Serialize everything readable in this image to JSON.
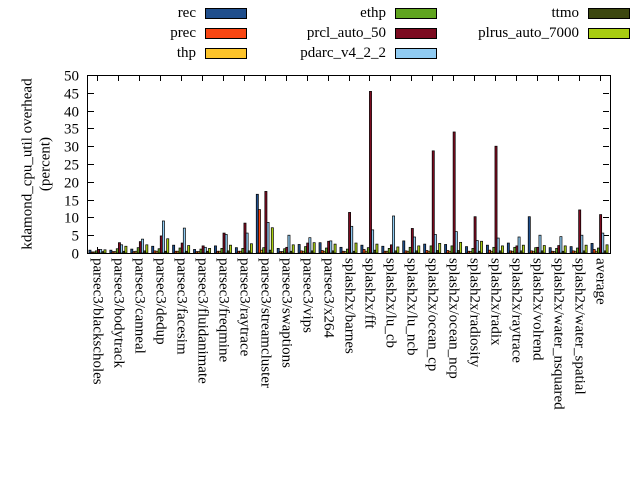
{
  "legend": {
    "columns": [
      {
        "items": [
          {
            "label": "rec"
          },
          {
            "label": "prec"
          },
          {
            "label": "thp"
          }
        ]
      },
      {
        "items": [
          {
            "label": "ethp"
          },
          {
            "label": "prcl_auto_50"
          },
          {
            "label": "pdarc_v4_2_2"
          }
        ]
      },
      {
        "items": [
          {
            "label": "ttmo"
          },
          {
            "label": "plrus_auto_7000"
          }
        ]
      }
    ]
  },
  "y_axis": {
    "title_line1": "kdamond_cpu_util overhead",
    "title_line2": "(percent)",
    "ticks": [
      0,
      5,
      10,
      15,
      20,
      25,
      30,
      35,
      40,
      45,
      50
    ],
    "min": 0,
    "max": 50
  },
  "chart_data": {
    "type": "bar",
    "title": "",
    "xlabel": "",
    "ylabel": "kdamond_cpu_util overhead (percent)",
    "ylim": [
      0,
      50
    ],
    "grid": false,
    "legend_position": "top",
    "categories": [
      "parsec3/blackscholes",
      "parsec3/bodytrack",
      "parsec3/canneal",
      "parsec3/dedup",
      "parsec3/facesim",
      "parsec3/fluidanimate",
      "parsec3/freqmine",
      "parsec3/raytrace",
      "parsec3/streamcluster",
      "parsec3/swaptions",
      "parsec3/vips",
      "parsec3/x264",
      "splash2x/barnes",
      "splash2x/fft",
      "splash2x/lu_cb",
      "splash2x/lu_ncb",
      "splash2x/ocean_cp",
      "splash2x/ocean_ncp",
      "splash2x/radiosity",
      "splash2x/radix",
      "splash2x/raytrace",
      "splash2x/volrend",
      "splash2x/water_nsquared",
      "splash2x/water_spatial",
      "average"
    ],
    "series": [
      {
        "name": "rec",
        "color": "#1f4e8c",
        "values": [
          0.8,
          0.8,
          1.1,
          1.9,
          2.2,
          1.0,
          2.0,
          1.5,
          16.5,
          1.3,
          2.4,
          2.9,
          1.6,
          2.2,
          1.9,
          3.4,
          2.5,
          2.4,
          1.8,
          2.2,
          2.8,
          10.2,
          1.5,
          1.8,
          2.7
        ]
      },
      {
        "name": "prec",
        "color": "#f84612",
        "values": [
          0.3,
          0.4,
          0.4,
          0.6,
          0.5,
          0.4,
          0.5,
          0.5,
          12.2,
          0.4,
          0.6,
          0.7,
          0.5,
          1.0,
          0.5,
          0.6,
          0.7,
          0.7,
          0.5,
          0.8,
          0.6,
          0.6,
          0.5,
          0.6,
          1.0
        ]
      },
      {
        "name": "thp",
        "color": "#fcc32a",
        "values": [
          0.3,
          0.4,
          0.5,
          0.5,
          0.5,
          0.4,
          0.5,
          0.5,
          0.8,
          0.4,
          0.5,
          0.5,
          0.4,
          0.5,
          0.5,
          0.5,
          0.5,
          0.5,
          0.4,
          0.5,
          0.5,
          0.5,
          0.4,
          0.5,
          0.5
        ]
      },
      {
        "name": "ethp",
        "color": "#60a41f",
        "values": [
          0.6,
          1.2,
          1.5,
          1.2,
          1.4,
          1.1,
          1.3,
          1.3,
          1.5,
          1.2,
          1.8,
          1.4,
          1.1,
          1.5,
          1.3,
          1.6,
          2.0,
          2.0,
          1.3,
          1.6,
          1.6,
          1.5,
          1.3,
          1.4,
          1.4
        ]
      },
      {
        "name": "prcl_auto_50",
        "color": "#7c0b20",
        "values": [
          1.0,
          2.9,
          3.2,
          4.8,
          2.8,
          2.0,
          5.6,
          8.4,
          17.3,
          1.6,
          2.8,
          3.3,
          11.4,
          45.4,
          2.3,
          6.9,
          28.7,
          34.0,
          10.2,
          30.0,
          2.0,
          1.6,
          2.1,
          12.1,
          10.8
        ]
      },
      {
        "name": "pdarc_v4_2_2",
        "color": "#90cbf2",
        "values": [
          1.0,
          2.3,
          3.9,
          9.0,
          7.0,
          1.6,
          5.2,
          5.6,
          8.6,
          5.0,
          4.3,
          3.4,
          7.5,
          6.5,
          10.4,
          4.5,
          5.2,
          6.0,
          3.5,
          4.2,
          4.5,
          5.0,
          4.6,
          5.0,
          5.6
        ]
      },
      {
        "name": "ttmo",
        "color": "#3c470f",
        "values": [
          0.4,
          0.5,
          0.6,
          0.5,
          0.5,
          0.5,
          0.6,
          0.6,
          0.8,
          0.5,
          0.6,
          0.6,
          0.5,
          0.8,
          0.6,
          0.6,
          0.7,
          0.7,
          0.5,
          0.6,
          0.6,
          0.6,
          0.5,
          0.6,
          0.6
        ]
      },
      {
        "name": "plrus_auto_7000",
        "color": "#a8cd11",
        "values": [
          0.9,
          1.9,
          2.3,
          4.0,
          2.1,
          1.3,
          2.2,
          2.6,
          7.1,
          2.3,
          2.9,
          2.5,
          2.8,
          2.5,
          1.7,
          2.0,
          2.7,
          3.0,
          3.3,
          2.0,
          2.2,
          2.1,
          2.0,
          2.2,
          2.3
        ]
      }
    ]
  }
}
